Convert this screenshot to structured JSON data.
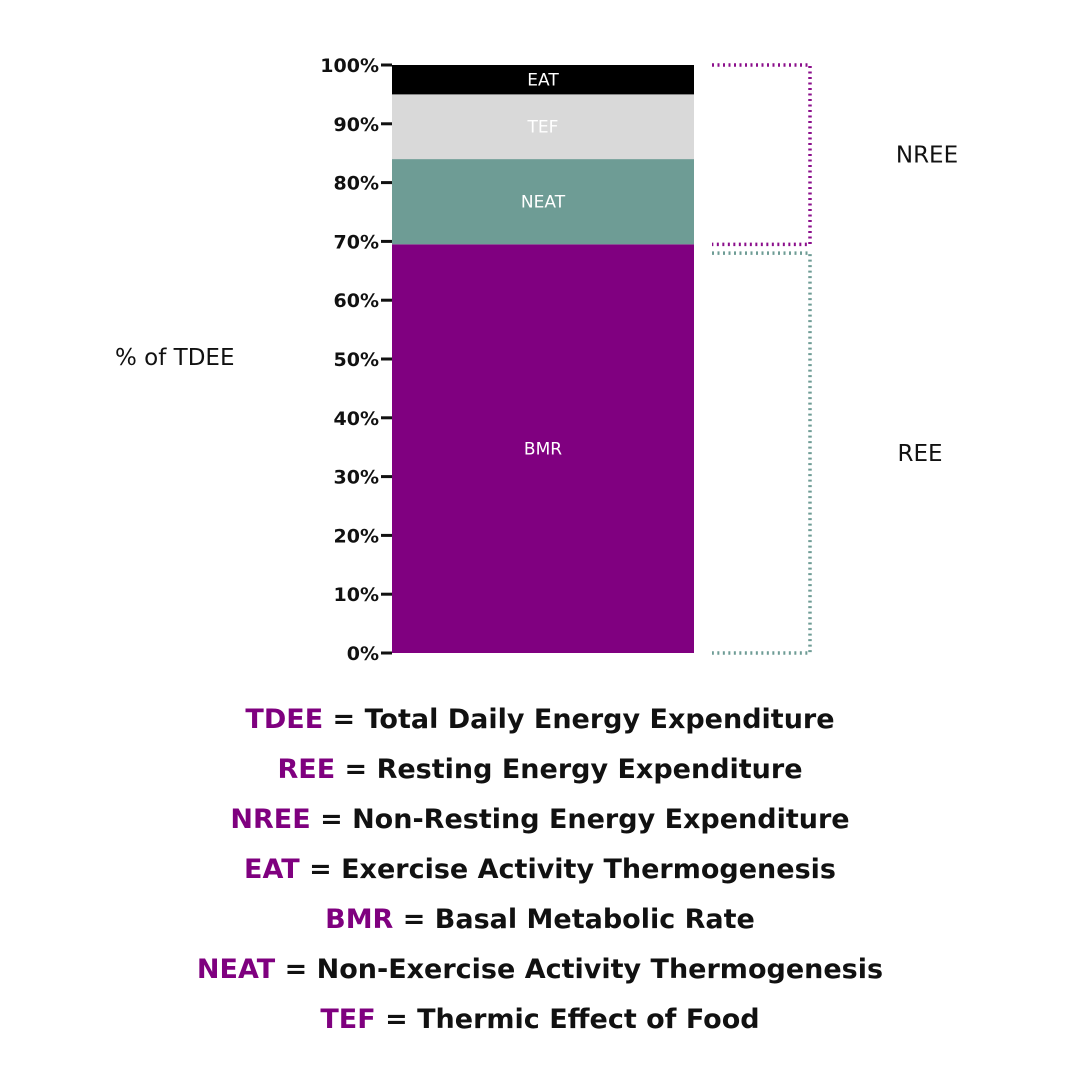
{
  "chart_data": {
    "type": "bar",
    "stacked": true,
    "ylabel": "% of TDEE",
    "ylim": [
      0,
      100
    ],
    "y_ticks": [
      {
        "value": 0,
        "label": "0%"
      },
      {
        "value": 10,
        "label": "10%"
      },
      {
        "value": 20,
        "label": "20%"
      },
      {
        "value": 30,
        "label": "30%"
      },
      {
        "value": 40,
        "label": "40%"
      },
      {
        "value": 50,
        "label": "50%"
      },
      {
        "value": 60,
        "label": "60%"
      },
      {
        "value": 70,
        "label": "70%"
      },
      {
        "value": 80,
        "label": "80%"
      },
      {
        "value": 90,
        "label": "90%"
      },
      {
        "value": 100,
        "label": "100%"
      }
    ],
    "series": [
      {
        "name": "BMR",
        "value": 69.5,
        "color": "#800080",
        "label_color": "#ffffff"
      },
      {
        "name": "NEAT",
        "value": 14.5,
        "color": "#6e9c95",
        "label_color": "#ffffff"
      },
      {
        "name": "TEF",
        "value": 11,
        "color": "#d9d9d9",
        "label_color": "#ffffff"
      },
      {
        "name": "EAT",
        "value": 5,
        "color": "#000000",
        "label_color": "#ffffff"
      }
    ],
    "groups": [
      {
        "name": "NREE",
        "range": [
          69.5,
          100
        ],
        "color": "#8b0f8b"
      },
      {
        "name": "REE",
        "range": [
          0,
          68
        ],
        "color": "#6e9c95"
      }
    ]
  },
  "legend": [
    {
      "abbr": "TDEE",
      "definition": "= Total Daily Energy Expenditure"
    },
    {
      "abbr": "REE",
      "definition": "= Resting Energy Expenditure"
    },
    {
      "abbr": "NREE",
      "definition": "= Non-Resting Energy Expenditure"
    },
    {
      "abbr": "EAT",
      "definition": "= Exercise Activity Thermogenesis"
    },
    {
      "abbr": "BMR",
      "definition": "= Basal Metabolic Rate"
    },
    {
      "abbr": "NEAT",
      "definition": "= Non-Exercise Activity Thermogenesis"
    },
    {
      "abbr": "TEF",
      "definition": "= Thermic Effect of Food"
    }
  ]
}
